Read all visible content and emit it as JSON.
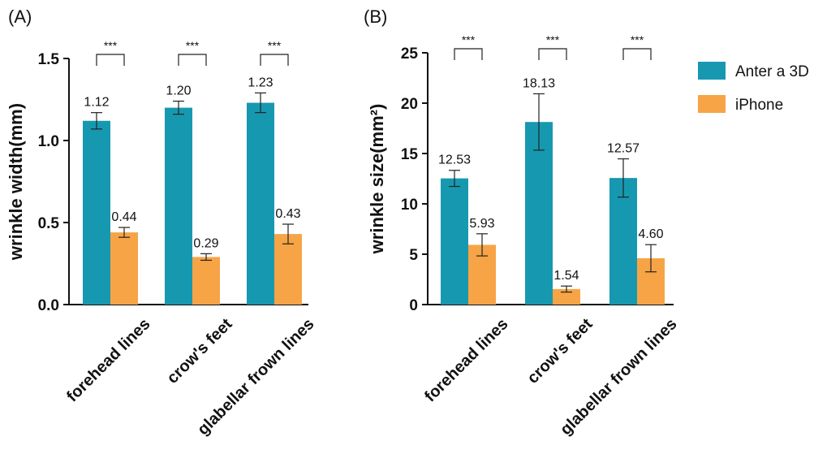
{
  "colors": {
    "anter": "#1699b0",
    "iphone": "#f7a446"
  },
  "legend": [
    {
      "label": "Anter a 3D",
      "color": "#1699b0"
    },
    {
      "label": "iPhone",
      "color": "#f7a446"
    }
  ],
  "chart_data": [
    {
      "type": "bar",
      "panel_label": "(A)",
      "ylabel": "wrinkle width(mm)",
      "ylim": [
        0,
        1.5
      ],
      "yticks": [
        "0.0",
        "0.5",
        "1.0",
        "1.5"
      ],
      "categories": [
        "forehead lines",
        "crow's feet",
        "glabellar frown lines"
      ],
      "series": [
        {
          "name": "Anter a 3D",
          "values": [
            1.12,
            1.2,
            1.23
          ],
          "errors": [
            0.05,
            0.04,
            0.06
          ],
          "labels": [
            "1.12",
            "1.20",
            "1.23"
          ]
        },
        {
          "name": "iPhone",
          "values": [
            0.44,
            0.29,
            0.43
          ],
          "errors": [
            0.03,
            0.02,
            0.06
          ],
          "labels": [
            "0.44",
            "0.29",
            "0.43"
          ]
        }
      ],
      "significance": [
        "***",
        "***",
        "***"
      ]
    },
    {
      "type": "bar",
      "panel_label": "(B)",
      "ylabel": "wrinkle size(mm²)",
      "ylim": [
        0,
        25
      ],
      "yticks": [
        "0",
        "5",
        "10",
        "15",
        "20",
        "25"
      ],
      "categories": [
        "forehead lines",
        "crow's feet",
        "glabellar frown lines"
      ],
      "series": [
        {
          "name": "Anter a 3D",
          "values": [
            12.53,
            18.13,
            12.57
          ],
          "errors": [
            0.8,
            2.8,
            1.9
          ],
          "labels": [
            "12.53",
            "18.13",
            "12.57"
          ]
        },
        {
          "name": "iPhone",
          "values": [
            5.93,
            1.54,
            4.6
          ],
          "errors": [
            1.1,
            0.3,
            1.35
          ],
          "labels": [
            "5.93",
            "1.54",
            "4.60"
          ]
        }
      ],
      "significance": [
        "***",
        "***",
        "***"
      ]
    }
  ]
}
